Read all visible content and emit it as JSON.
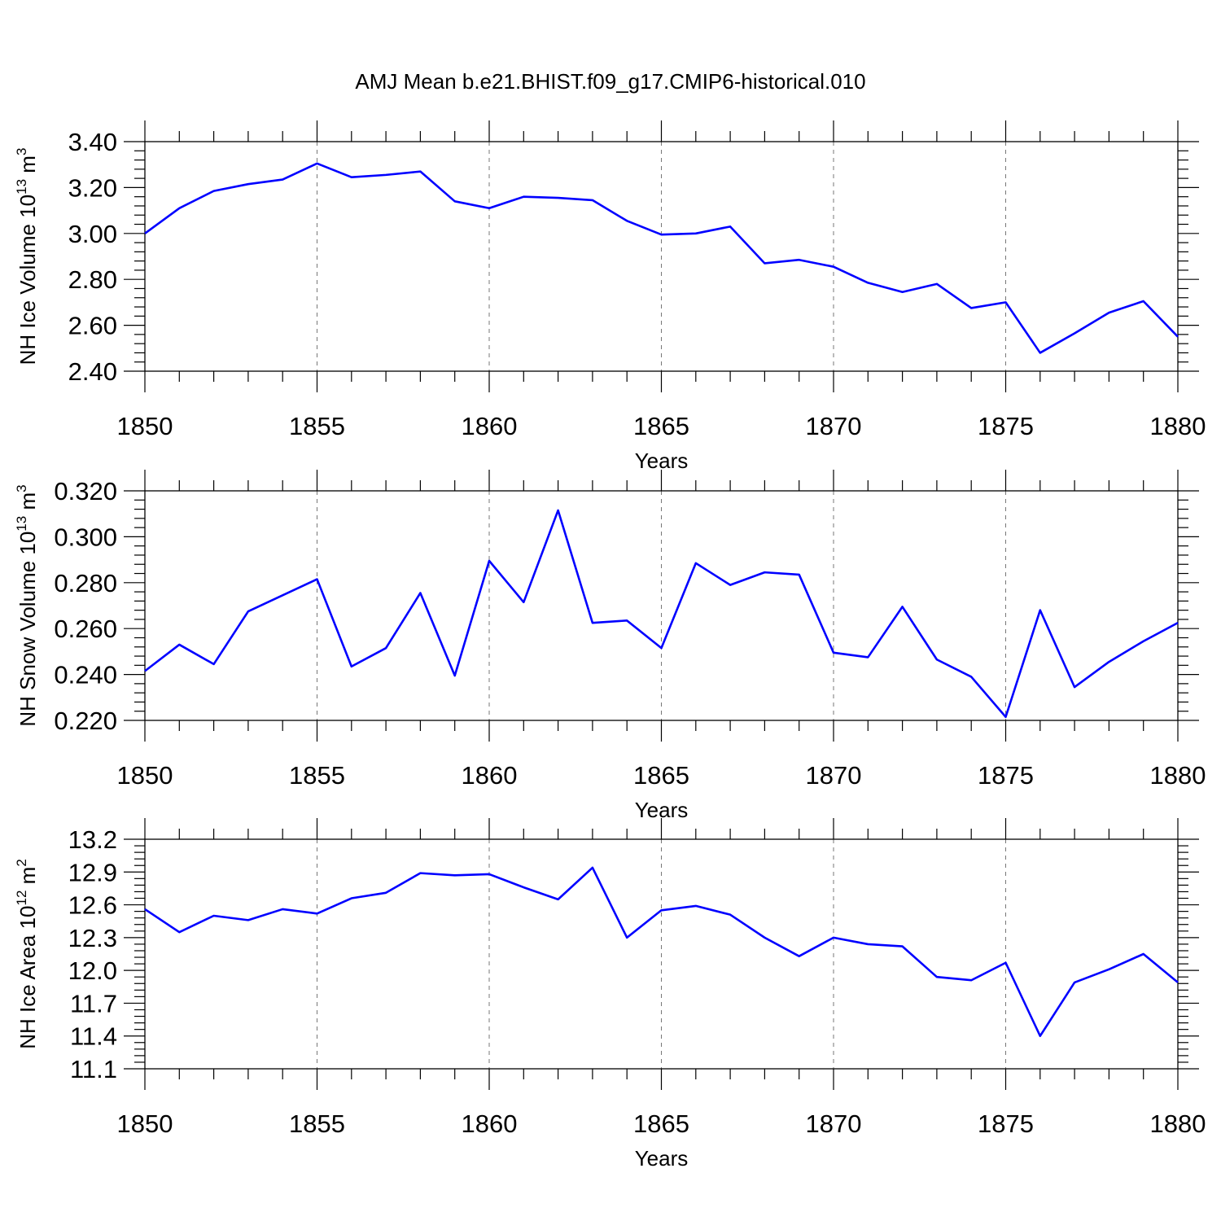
{
  "title": "AMJ Mean b.e21.BHIST.f09_g17.CMIP6-historical.010",
  "line_color": "#0000ff",
  "chart_data": [
    {
      "type": "line",
      "ylabel": "NH Ice Volume 10",
      "ylabel_exp": "13",
      "ylabel_unit": " m",
      "ylabel_unit_exp": "3",
      "xlabel": "Years",
      "xlim": [
        1850,
        1880
      ],
      "ylim": [
        2.4,
        3.4
      ],
      "xticks": [
        1850,
        1855,
        1860,
        1865,
        1870,
        1875,
        1880
      ],
      "xtick_labels": [
        "1850",
        "1855",
        "1860",
        "1865",
        "1870",
        "1875",
        "1880"
      ],
      "yticks": [
        2.4,
        2.6,
        2.8,
        3.0,
        3.2,
        3.4
      ],
      "ytick_labels": [
        "2.40",
        "2.60",
        "2.80",
        "3.00",
        "3.20",
        "3.40"
      ],
      "grid": "dashed vertical at major x ticks",
      "x": [
        1850,
        1851,
        1852,
        1853,
        1854,
        1855,
        1856,
        1857,
        1858,
        1859,
        1860,
        1861,
        1862,
        1863,
        1864,
        1865,
        1866,
        1867,
        1868,
        1869,
        1870,
        1871,
        1872,
        1873,
        1874,
        1875,
        1876,
        1877,
        1878,
        1879,
        1880
      ],
      "series": [
        {
          "values": [
            3.0,
            3.11,
            3.185,
            3.215,
            3.235,
            3.305,
            3.245,
            3.255,
            3.27,
            3.14,
            3.11,
            3.16,
            3.155,
            3.145,
            3.055,
            2.995,
            3.0,
            3.03,
            2.87,
            2.885,
            2.855,
            2.785,
            2.745,
            2.78,
            2.675,
            2.7,
            2.48,
            2.565,
            2.655,
            2.705,
            2.55
          ]
        }
      ]
    },
    {
      "type": "line",
      "ylabel": "NH Snow Volume 10",
      "ylabel_exp": "13",
      "ylabel_unit": " m",
      "ylabel_unit_exp": "3",
      "xlabel": "Years",
      "xlim": [
        1850,
        1880
      ],
      "ylim": [
        0.22,
        0.32
      ],
      "xticks": [
        1850,
        1855,
        1860,
        1865,
        1870,
        1875,
        1880
      ],
      "xtick_labels": [
        "1850",
        "1855",
        "1860",
        "1865",
        "1870",
        "1875",
        "1880"
      ],
      "yticks": [
        0.22,
        0.24,
        0.26,
        0.28,
        0.3,
        0.32
      ],
      "ytick_labels": [
        "0.220",
        "0.240",
        "0.260",
        "0.280",
        "0.300",
        "0.320"
      ],
      "grid": "dashed vertical at major x ticks",
      "x": [
        1850,
        1851,
        1852,
        1853,
        1854,
        1855,
        1856,
        1857,
        1858,
        1859,
        1860,
        1861,
        1862,
        1863,
        1864,
        1865,
        1866,
        1867,
        1868,
        1869,
        1870,
        1871,
        1872,
        1873,
        1874,
        1875,
        1876,
        1877,
        1878,
        1879,
        1880
      ],
      "series": [
        {
          "values": [
            0.2415,
            0.253,
            0.2445,
            0.2675,
            0.2745,
            0.2815,
            0.2435,
            0.2515,
            0.2755,
            0.2395,
            0.2895,
            0.2715,
            0.3115,
            0.2625,
            0.2635,
            0.2515,
            0.2885,
            0.279,
            0.2845,
            0.2835,
            0.2495,
            0.2475,
            0.2695,
            0.2465,
            0.239,
            0.2215,
            0.268,
            0.2345,
            0.2455,
            0.2545,
            0.2625
          ]
        }
      ]
    },
    {
      "type": "line",
      "ylabel": "NH Ice Area 10",
      "ylabel_exp": "12",
      "ylabel_unit": " m",
      "ylabel_unit_exp": "2",
      "xlabel": "Years",
      "xlim": [
        1850,
        1880
      ],
      "ylim": [
        11.1,
        13.2
      ],
      "xticks": [
        1850,
        1855,
        1860,
        1865,
        1870,
        1875,
        1880
      ],
      "xtick_labels": [
        "1850",
        "1855",
        "1860",
        "1865",
        "1870",
        "1875",
        "1880"
      ],
      "yticks": [
        11.1,
        11.4,
        11.7,
        12.0,
        12.3,
        12.6,
        12.9,
        13.2
      ],
      "ytick_labels": [
        "11.1",
        "11.4",
        "11.7",
        "12.0",
        "12.3",
        "12.6",
        "12.9",
        "13.2"
      ],
      "grid": "dashed vertical at major x ticks",
      "x": [
        1850,
        1851,
        1852,
        1853,
        1854,
        1855,
        1856,
        1857,
        1858,
        1859,
        1860,
        1861,
        1862,
        1863,
        1864,
        1865,
        1866,
        1867,
        1868,
        1869,
        1870,
        1871,
        1872,
        1873,
        1874,
        1875,
        1876,
        1877,
        1878,
        1879,
        1880
      ],
      "series": [
        {
          "values": [
            12.56,
            12.35,
            12.5,
            12.46,
            12.56,
            12.52,
            12.66,
            12.71,
            12.89,
            12.87,
            12.88,
            12.76,
            12.65,
            12.94,
            12.3,
            12.55,
            12.59,
            12.51,
            12.3,
            12.13,
            12.3,
            12.24,
            12.22,
            11.94,
            11.91,
            12.07,
            11.4,
            11.89,
            12.01,
            12.15,
            11.89
          ]
        }
      ]
    }
  ]
}
